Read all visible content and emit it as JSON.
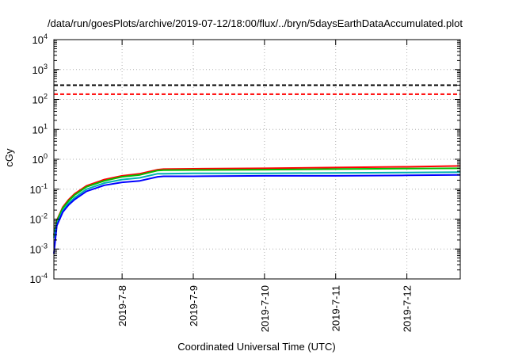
{
  "chart_data": {
    "type": "line",
    "title": "/data/run/goesPlots/archive/2019-07-12/18:00/flux/../bryn/5daysEarthDataAccumulated.plot",
    "xlabel": "Coordinated Universal Time (UTC)",
    "ylabel": "cGy",
    "yscale": "log",
    "ylim": [
      0.0001,
      10000
    ],
    "y_ticks": [
      {
        "value": 0.0001,
        "base": "10",
        "exp": "-4"
      },
      {
        "value": 0.001,
        "base": "10",
        "exp": "-3"
      },
      {
        "value": 0.01,
        "base": "10",
        "exp": "-2"
      },
      {
        "value": 0.1,
        "base": "10",
        "exp": "-1"
      },
      {
        "value": 1,
        "base": "10",
        "exp": "0"
      },
      {
        "value": 10,
        "base": "10",
        "exp": "1"
      },
      {
        "value": 100,
        "base": "10",
        "exp": "2"
      },
      {
        "value": 1000,
        "base": "10",
        "exp": "3"
      },
      {
        "value": 10000,
        "base": "10",
        "exp": "4"
      }
    ],
    "xlim": [
      "2019-07-07 01:00",
      "2019-07-12 18:00"
    ],
    "x_ticks": [
      "2019-7-8",
      "2019-7-9",
      "2019-7-10",
      "2019-7-11",
      "2019-7-12"
    ],
    "grid": true,
    "thresholds": [
      {
        "value": 300,
        "color": "#000000",
        "style": "dashed"
      },
      {
        "value": 150,
        "color": "#ff0000",
        "style": "dashed"
      }
    ],
    "series": [
      {
        "color": "#ff0000",
        "x": [
          "2019-07-07 01:00",
          "2019-07-07 02:00",
          "2019-07-07 04:00",
          "2019-07-07 06:00",
          "2019-07-07 08:00",
          "2019-07-07 12:00",
          "2019-07-07 18:00",
          "2019-07-08 00:00",
          "2019-07-08 06:00",
          "2019-07-08 12:00",
          "2019-07-08 14:00",
          "2019-07-09 00:00",
          "2019-07-10 00:00",
          "2019-07-11 00:00",
          "2019-07-12 00:00",
          "2019-07-12 18:00"
        ],
        "values": [
          0.003,
          0.009,
          0.025,
          0.045,
          0.07,
          0.13,
          0.21,
          0.28,
          0.33,
          0.45,
          0.47,
          0.48,
          0.5,
          0.53,
          0.56,
          0.6
        ]
      },
      {
        "color": "#00c000",
        "x": [
          "2019-07-07 01:00",
          "2019-07-07 02:00",
          "2019-07-07 04:00",
          "2019-07-07 06:00",
          "2019-07-07 08:00",
          "2019-07-07 12:00",
          "2019-07-07 18:00",
          "2019-07-08 00:00",
          "2019-07-08 06:00",
          "2019-07-08 12:00",
          "2019-07-08 14:00",
          "2019-07-09 00:00",
          "2019-07-10 00:00",
          "2019-07-11 00:00",
          "2019-07-12 00:00",
          "2019-07-12 18:00"
        ],
        "values": [
          0.0028,
          0.0085,
          0.023,
          0.041,
          0.064,
          0.12,
          0.19,
          0.26,
          0.3,
          0.42,
          0.43,
          0.44,
          0.45,
          0.47,
          0.49,
          0.5
        ]
      },
      {
        "color": "#00b0b0",
        "x": [
          "2019-07-07 01:00",
          "2019-07-07 02:00",
          "2019-07-07 04:00",
          "2019-07-07 06:00",
          "2019-07-07 08:00",
          "2019-07-07 12:00",
          "2019-07-07 18:00",
          "2019-07-08 00:00",
          "2019-07-08 06:00",
          "2019-07-08 12:00",
          "2019-07-08 14:00",
          "2019-07-09 00:00",
          "2019-07-10 00:00",
          "2019-07-11 00:00",
          "2019-07-12 00:00",
          "2019-07-12 18:00"
        ],
        "values": [
          0.0024,
          0.007,
          0.019,
          0.034,
          0.052,
          0.1,
          0.16,
          0.21,
          0.24,
          0.33,
          0.33,
          0.34,
          0.34,
          0.35,
          0.36,
          0.37
        ]
      },
      {
        "color": "#0000ff",
        "x": [
          "2019-07-07 01:00",
          "2019-07-07 02:00",
          "2019-07-07 04:00",
          "2019-07-07 06:00",
          "2019-07-07 08:00",
          "2019-07-07 12:00",
          "2019-07-07 18:00",
          "2019-07-08 00:00",
          "2019-07-08 06:00",
          "2019-07-08 12:00",
          "2019-07-08 14:00",
          "2019-07-09 00:00",
          "2019-07-10 00:00",
          "2019-07-11 00:00",
          "2019-07-12 00:00",
          "2019-07-12 18:00"
        ],
        "values": [
          0.0007,
          0.006,
          0.017,
          0.03,
          0.045,
          0.085,
          0.135,
          0.17,
          0.19,
          0.26,
          0.27,
          0.27,
          0.28,
          0.28,
          0.29,
          0.3
        ]
      }
    ]
  }
}
